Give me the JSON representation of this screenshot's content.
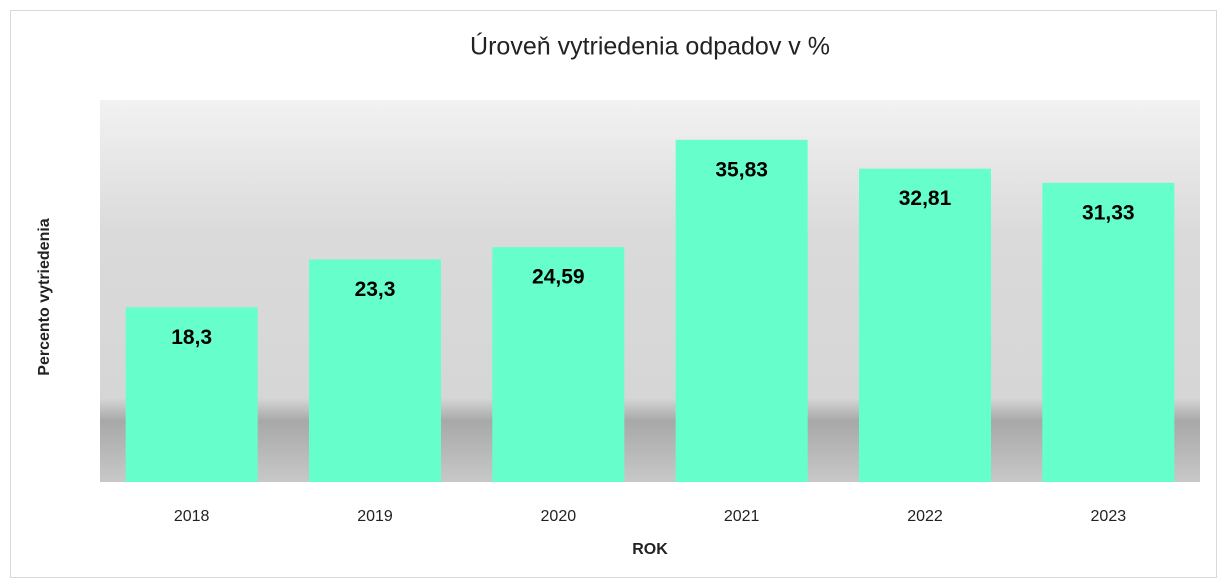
{
  "chart_data": {
    "type": "bar",
    "title": "Úroveň vytriedenia odpadov v %",
    "x_label": "ROK",
    "y_label": "Percento vytriedenia",
    "categories": [
      "2018",
      "2019",
      "2020",
      "2021",
      "2022",
      "2023"
    ],
    "values": [
      18.3,
      23.3,
      24.59,
      35.83,
      32.81,
      31.33
    ],
    "value_labels": [
      "18,3",
      "23,3",
      "24,59",
      "35,83",
      "32,81",
      "31,33"
    ],
    "color": "#66ffcc",
    "ylim": [
      0,
      40
    ]
  }
}
